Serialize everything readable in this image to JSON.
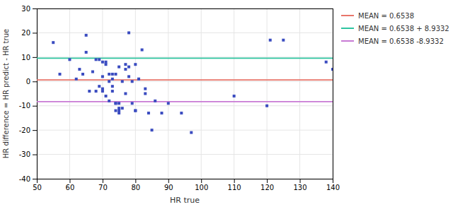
{
  "chart_data": {
    "type": "scatter",
    "xlabel": "HR true",
    "ylabel": "HR difference = HR predict - HR true",
    "xlim": [
      50,
      140
    ],
    "ylim": [
      -40,
      30
    ],
    "xticks": [
      50,
      60,
      70,
      80,
      90,
      100,
      110,
      120,
      130,
      140
    ],
    "yticks": [
      -40,
      -30,
      -20,
      -10,
      0,
      10,
      20,
      30
    ],
    "grid": true,
    "legend": "right",
    "series": [
      {
        "type": "scatter",
        "color": "#3b4cc0",
        "marker": "square",
        "x": [
          55,
          57,
          60,
          62,
          63,
          64,
          65,
          65,
          66,
          67,
          68,
          68,
          69,
          69,
          70,
          70,
          70,
          70,
          71,
          71,
          71,
          72,
          72,
          72,
          73,
          73,
          73,
          73,
          74,
          74,
          74,
          74,
          75,
          75,
          75,
          75,
          75,
          76,
          76,
          77,
          77,
          77,
          78,
          78,
          78,
          79,
          79,
          80,
          80,
          80,
          81,
          81,
          82,
          83,
          83,
          84,
          85,
          86,
          88,
          90,
          94,
          97,
          110,
          120,
          121,
          125,
          138,
          140
        ],
        "values": [
          16,
          3,
          9,
          1,
          5,
          3,
          12,
          19,
          -4,
          4,
          -4,
          9,
          -2,
          9,
          8,
          -4,
          -3,
          2,
          -6,
          7,
          8,
          -8,
          0,
          3,
          -4,
          -2,
          3,
          1,
          -9,
          -12,
          -9,
          3,
          -13,
          -12,
          -9,
          -11,
          6,
          -11,
          0,
          7,
          5,
          -5,
          2,
          20,
          6,
          0,
          -9,
          -12,
          -12,
          7,
          1,
          1,
          13,
          -5,
          -3,
          -13,
          -20,
          -8,
          -13,
          -9,
          -13,
          -21,
          -6,
          -10,
          17,
          17,
          8,
          5
        ]
      },
      {
        "name": "MEAN = 0.6538",
        "type": "hline",
        "color": "#e8756a",
        "values": [
          0.6538
        ]
      },
      {
        "name": "MEAN = 0.6538 + 8.9332",
        "type": "hline",
        "color": "#2ec4a0",
        "values": [
          9.587
        ]
      },
      {
        "name": "MEAN = 0.6538 -8.9332",
        "type": "hline",
        "color": "#c87ad4",
        "values": [
          -8.2794
        ]
      }
    ]
  }
}
